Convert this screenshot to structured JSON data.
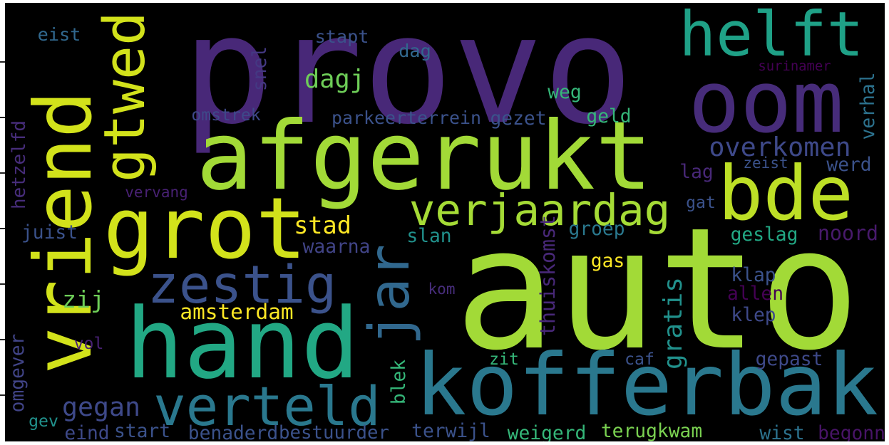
{
  "wordcloud": {
    "background": "#000000",
    "colormap": "viridis",
    "words": [
      {
        "text": "provo",
        "color": "#482878"
      },
      {
        "text": "auto",
        "color": "#a2da37"
      },
      {
        "text": "afgerukt",
        "color": "#a2da37"
      },
      {
        "text": "vriend",
        "color": "#d2e21b"
      },
      {
        "text": "hand",
        "color": "#22a884"
      },
      {
        "text": "kofferbak",
        "color": "#2a788e"
      },
      {
        "text": "grot",
        "color": "#d2e21b"
      },
      {
        "text": "gtwed",
        "color": "#d2e21b"
      },
      {
        "text": "helft",
        "color": "#1fa187"
      },
      {
        "text": "oom",
        "color": "#472c7a"
      },
      {
        "text": "bde",
        "color": "#bddf26"
      },
      {
        "text": "verjaardag",
        "color": "#a5db36"
      },
      {
        "text": "zestig",
        "color": "#3b528b"
      },
      {
        "text": "jar",
        "color": "#31688e"
      },
      {
        "text": "verteld",
        "color": "#2a788e"
      },
      {
        "text": "amsterdam",
        "color": "#fde725"
      },
      {
        "text": "stad",
        "color": "#fde725"
      },
      {
        "text": "overkomen",
        "color": "#3e4989"
      },
      {
        "text": "dagj",
        "color": "#6ece58"
      },
      {
        "text": "zij",
        "color": "#6ece58"
      },
      {
        "text": "gegan",
        "color": "#3e4989"
      },
      {
        "text": "gratis",
        "color": "#21918c"
      },
      {
        "text": "eist",
        "color": "#31688e"
      },
      {
        "text": "stapt",
        "color": "#3b528b"
      },
      {
        "text": "dag",
        "color": "#31688e"
      },
      {
        "text": "snel",
        "color": "#443983"
      },
      {
        "text": "surinamer",
        "color": "#440154"
      },
      {
        "text": "weg",
        "color": "#35b779"
      },
      {
        "text": "omstrek",
        "color": "#3e4989"
      },
      {
        "text": "parkeerterrein",
        "color": "#3b528b"
      },
      {
        "text": "gezet",
        "color": "#3b528b"
      },
      {
        "text": "geld",
        "color": "#35b779"
      },
      {
        "text": "verhal",
        "color": "#2c728e"
      },
      {
        "text": "zeist",
        "color": "#3b528b"
      },
      {
        "text": "werd",
        "color": "#3b528b"
      },
      {
        "text": "lag",
        "color": "#482878"
      },
      {
        "text": "hetzelfd",
        "color": "#472d7b"
      },
      {
        "text": "vervang",
        "color": "#482173"
      },
      {
        "text": "gat",
        "color": "#3b528b"
      },
      {
        "text": "juist",
        "color": "#3b528b"
      },
      {
        "text": "waarna",
        "color": "#414487"
      },
      {
        "text": "slan",
        "color": "#21918c"
      },
      {
        "text": "thuiskomst",
        "color": "#482878"
      },
      {
        "text": "groep",
        "color": "#2a788e"
      },
      {
        "text": "geslag",
        "color": "#22a884"
      },
      {
        "text": "noord",
        "color": "#481a6c"
      },
      {
        "text": "gas",
        "color": "#fde725"
      },
      {
        "text": "kom",
        "color": "#472d7b"
      },
      {
        "text": "klap",
        "color": "#3b528b"
      },
      {
        "text": "allen",
        "color": "#440154"
      },
      {
        "text": "klep",
        "color": "#3e4989"
      },
      {
        "text": "vol",
        "color": "#482173"
      },
      {
        "text": "omgever",
        "color": "#414487"
      },
      {
        "text": "zit",
        "color": "#35b779"
      },
      {
        "text": "caf",
        "color": "#3b528b"
      },
      {
        "text": "gepast",
        "color": "#3e4989"
      },
      {
        "text": "blek",
        "color": "#35b779"
      },
      {
        "text": "gev",
        "color": "#21918c"
      },
      {
        "text": "eind",
        "color": "#3e4989"
      },
      {
        "text": "start",
        "color": "#3b528b"
      },
      {
        "text": "benaderd",
        "color": "#3b528b"
      },
      {
        "text": "bestuurder",
        "color": "#3b528b"
      },
      {
        "text": "terwijl",
        "color": "#3b528b"
      },
      {
        "text": "weigerd",
        "color": "#35b779"
      },
      {
        "text": "terugkwam",
        "color": "#7ad151"
      },
      {
        "text": "wist",
        "color": "#2c728e"
      },
      {
        "text": "begonn",
        "color": "#481467"
      }
    ]
  }
}
